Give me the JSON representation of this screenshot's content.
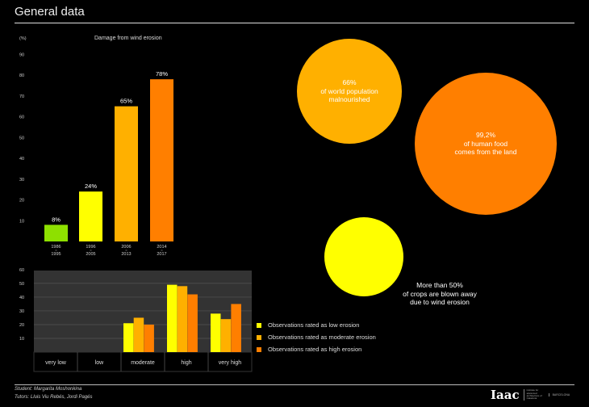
{
  "header": {
    "title": "General data"
  },
  "chart_data": [
    {
      "type": "bar",
      "title": "Damage from wind erosion",
      "ylabel": "(%)",
      "ylim": [
        0,
        90
      ],
      "yticks": [
        10,
        20,
        30,
        40,
        50,
        60,
        70,
        80,
        90
      ],
      "categories": [
        [
          "1986",
          "1995"
        ],
        [
          "1996",
          "2005"
        ],
        [
          "2006",
          "2013"
        ],
        [
          "2014",
          "2017"
        ]
      ],
      "values": [
        8,
        24,
        65,
        78
      ],
      "labels": [
        "8%",
        "24%",
        "65%",
        "78%"
      ],
      "colors": [
        "#8ee000",
        "#ffff00",
        "#ffb000",
        "#ff7f00"
      ]
    },
    {
      "type": "bar",
      "ylim": [
        0,
        60
      ],
      "yticks": [
        10,
        20,
        30,
        40,
        50,
        60
      ],
      "categories": [
        "very low",
        "low",
        "moderate",
        "high",
        "very high"
      ],
      "series": [
        {
          "name": "Observations rated as low erosion",
          "values": [
            0,
            0,
            21,
            49,
            28
          ],
          "color": "#ffff00"
        },
        {
          "name": "Observations rated as moderate erosion",
          "values": [
            0,
            0,
            25,
            48,
            24
          ],
          "color": "#ffb000"
        },
        {
          "name": "Observations rated as high erosion",
          "values": [
            0,
            0,
            20,
            42,
            35
          ],
          "color": "#ff7f00"
        }
      ]
    }
  ],
  "bubbles": [
    {
      "pct": "66%",
      "lines": [
        "of world population",
        "malnourished"
      ],
      "color": "#ffb000"
    },
    {
      "pct": "99,2%",
      "lines": [
        "of human food",
        "comes from the land"
      ],
      "color": "#ff7f00"
    },
    {
      "pct": "More than 50%",
      "lines": [
        "of crops are blown away",
        "due to wind erosion"
      ],
      "color": "#ffff00"
    }
  ],
  "footer": {
    "student": "Student: Margarita Moshonkina",
    "tutors": "Tutors: Lluis Viu Rebés, Jordi Pagés",
    "logo": "Iaac",
    "logo_sub": "institute for advanced architecture of Catalonia",
    "city": "BARCELONA"
  }
}
